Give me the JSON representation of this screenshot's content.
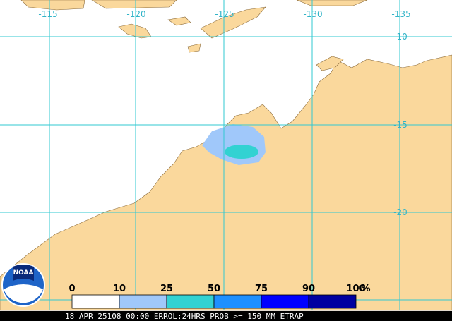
{
  "map": {
    "lon_labels": [
      "-115",
      "-120",
      "-125",
      "-130",
      "-135"
    ],
    "lat_labels": [
      "-10",
      "-15",
      "-20"
    ]
  },
  "legend": {
    "ticks": [
      "0",
      "10",
      "25",
      "50",
      "75",
      "90",
      "100"
    ],
    "unit": "%",
    "colors": [
      "#ffffff",
      "#a0c8fa",
      "#32d2d2",
      "#1e90ff",
      "#0000ff",
      "#0000a0"
    ]
  },
  "caption": "18 APR 25108 00:00 ERROL:24HRS PROB >= 150 MM ETRAP",
  "logo": "NOAA"
}
